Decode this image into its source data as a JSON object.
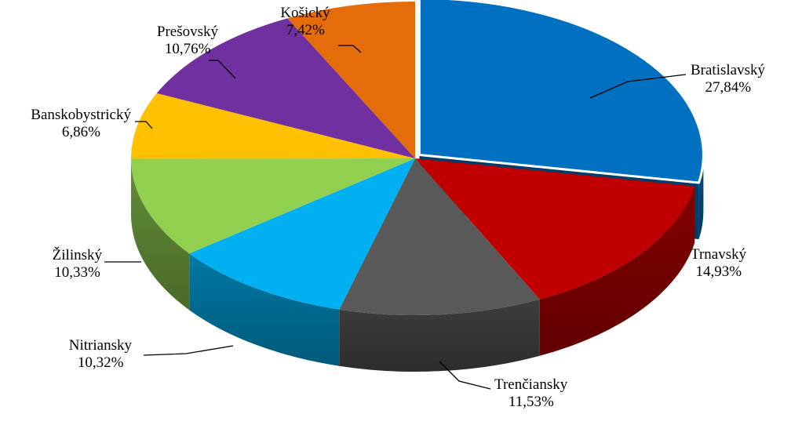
{
  "chart_data": {
    "type": "pie",
    "title": "",
    "categories": [
      "Bratislavský",
      "Trnavský",
      "Trenčiansky",
      "Nitriansky",
      "Žilinský",
      "Banskobystrický",
      "Prešovský",
      "Košický"
    ],
    "values": [
      27.84,
      14.93,
      11.53,
      10.32,
      10.33,
      6.86,
      10.76,
      7.42
    ],
    "value_labels": [
      "27,84%",
      "14,93%",
      "11,53%",
      "10,32%",
      "10,33%",
      "6,86%",
      "10,76%",
      "7,42%"
    ],
    "colors": [
      "#0070C0",
      "#C00000",
      "#595959",
      "#00B0F0",
      "#92D050",
      "#FFC000",
      "#7030A0",
      "#E46C0A"
    ],
    "exploded_slice": "Bratislavský",
    "legend": "none",
    "style": "3d-pie"
  }
}
